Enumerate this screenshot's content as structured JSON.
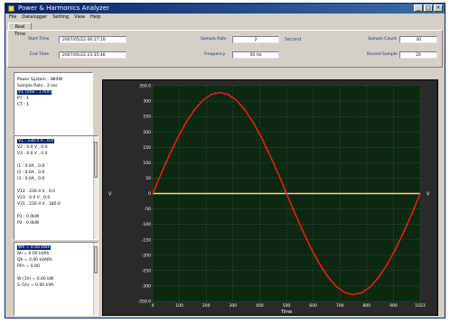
{
  "window": {
    "title": "Power & Harmonics Analyzer",
    "menu": [
      "File",
      "Datalogger",
      "Setting",
      "View",
      "Help"
    ]
  },
  "tabs": [
    "Real Time"
  ],
  "header": {
    "start_time_label": "Start Time",
    "start_time": "2007/05/22 06:17:10",
    "end_time_label": "End Time",
    "end_time": "2007/05/22 23:35:46",
    "sample_rate_label": "Sample Rate",
    "sample_rate": "2",
    "sample_rate_unit": "Second",
    "frequency_label": "Frequency",
    "frequency": "50 Hz",
    "sample_count_label": "Sample Count",
    "sample_count": "30",
    "record_sample_label": "Record Sample",
    "record_sample": "20"
  },
  "info_list": [
    "Power System : 3Φ4W",
    "Sample Rate : 2 sec",
    "V1 Time : 1 mm",
    "PT : 1",
    "CT : 1"
  ],
  "info_selected_index": 2,
  "measure_list": [
    "V1 : 230.4 V , 0.0",
    "V2 : 0.0 V , 0.0",
    "V3 : 0.0 V , 0.0",
    "",
    "I1 : 0.0A , 0.0",
    "I2 : 0.0A , 0.0",
    "I3 : 0.0A , 0.0",
    "",
    "V12 : 230.4 V , 0.0",
    "V23 : 0.0 V , 0.0",
    "V31 : 230.4 V , 180.0",
    "",
    "P1 : 0.0kW",
    "P2 : 0.0kW"
  ],
  "measure_selected_index": 0,
  "power_list": [
    "Wh = 0.00 kWh",
    "Ah = 0.00 kVAh",
    "Qh = 0.00 kVARh",
    "PFh = 0.00",
    "",
    "W (1h) = 0.00 kW",
    "S (1h) = 0.00 kVA"
  ],
  "power_selected_index": 0,
  "colors": {
    "plot_bg": "#0b2810",
    "grid": "#2f6a36",
    "wave": "#e02020",
    "zero_line": "#e8d9a0",
    "tick_text": "#ffffff"
  },
  "chart_data": {
    "type": "line",
    "xlabel": "Time",
    "xlim": [
      0,
      1023
    ],
    "ylim": [
      -350,
      350
    ],
    "xticks": [
      "0",
      "100",
      "200",
      "300",
      "400",
      "500",
      "600",
      "700",
      "800",
      "900",
      "1023"
    ],
    "yticks": [
      "350.0",
      "300",
      "250",
      "200",
      "150",
      "100",
      "50",
      "0",
      "-50",
      "-100",
      "-150",
      "-200",
      "-250",
      "-300",
      "-350.0"
    ],
    "side_label": "V",
    "series": [
      {
        "x": [
          0,
          32,
          64,
          96,
          128,
          160,
          192,
          224,
          256,
          288,
          320,
          352,
          384,
          416,
          448,
          480,
          512,
          544,
          576,
          608,
          640,
          672,
          704,
          736,
          768,
          800,
          832,
          864,
          896,
          928,
          960,
          992,
          1023
        ],
        "values": [
          0,
          64,
          125,
          182,
          231,
          272,
          303,
          322,
          328,
          322,
          303,
          272,
          231,
          182,
          125,
          64,
          0,
          -64,
          -125,
          -182,
          -231,
          -272,
          -303,
          -322,
          -328,
          -322,
          -303,
          -272,
          -231,
          -182,
          -125,
          -64,
          0
        ]
      }
    ]
  }
}
